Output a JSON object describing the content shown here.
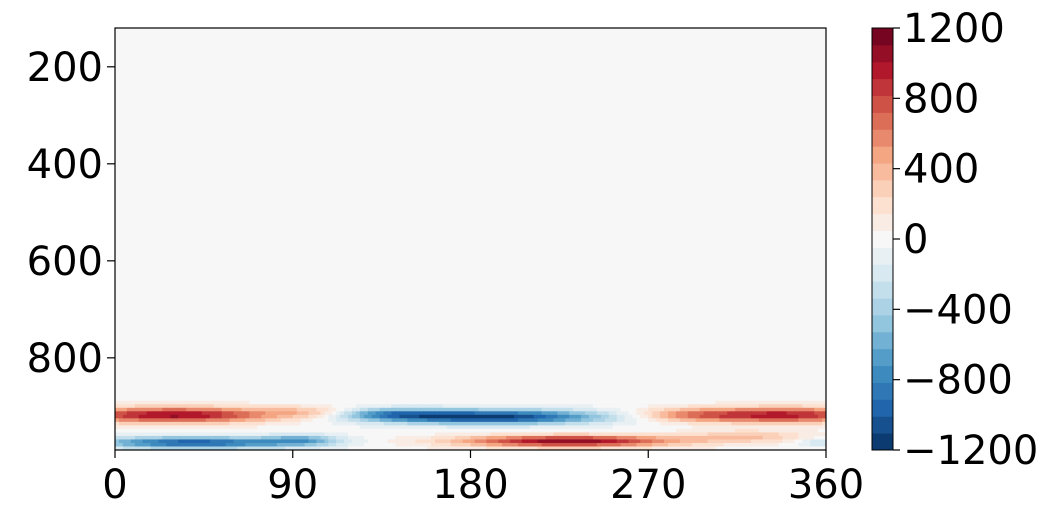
{
  "chart_data": {
    "type": "heatmap",
    "title": "",
    "xlabel": "",
    "ylabel": "",
    "xlim": [
      0,
      360
    ],
    "ylim": [
      990,
      120
    ],
    "y_inverted": true,
    "x_ticks": [
      0,
      90,
      180,
      270,
      360
    ],
    "x_tick_labels": [
      "0",
      "90",
      "180",
      "270",
      "360"
    ],
    "y_ticks": [
      200,
      400,
      600,
      800
    ],
    "y_tick_labels": [
      "200",
      "400",
      "600",
      "800"
    ],
    "colorbar": {
      "colormap": "RdBu_r",
      "range": [
        -1200,
        1200
      ],
      "ticks": [
        1200,
        800,
        400,
        0,
        -400,
        -800,
        -1200
      ],
      "tick_labels": [
        "1200",
        "800",
        "400",
        "0",
        "−400",
        "−800",
        "−1200"
      ],
      "levels": 25
    },
    "background_value": 0,
    "features": [
      {
        "x_center": 30,
        "y_center": 918,
        "x_width": 55,
        "y_width": 16,
        "value": 1050
      },
      {
        "x_center": 340,
        "y_center": 918,
        "x_width": 45,
        "y_width": 16,
        "value": 950
      },
      {
        "x_center": 290,
        "y_center": 918,
        "x_width": 30,
        "y_width": 14,
        "value": 450
      },
      {
        "x_center": 100,
        "y_center": 912,
        "x_width": 20,
        "y_width": 12,
        "value": 300
      },
      {
        "x_center": 190,
        "y_center": 922,
        "x_width": 60,
        "y_width": 15,
        "value": -1150
      },
      {
        "x_center": 140,
        "y_center": 915,
        "x_width": 30,
        "y_width": 12,
        "value": -500
      },
      {
        "x_center": 40,
        "y_center": 975,
        "x_width": 50,
        "y_width": 12,
        "value": -1000
      },
      {
        "x_center": 95,
        "y_center": 970,
        "x_width": 20,
        "y_width": 12,
        "value": -500
      },
      {
        "x_center": 230,
        "y_center": 972,
        "x_width": 55,
        "y_width": 12,
        "value": 1100
      },
      {
        "x_center": 320,
        "y_center": 962,
        "x_width": 30,
        "y_width": 12,
        "value": 350
      },
      {
        "x_center": 355,
        "y_center": 975,
        "x_width": 10,
        "y_width": 8,
        "value": -250
      },
      {
        "x_center": 180,
        "y_center": 420,
        "x_width": 110,
        "y_width": 140,
        "value": 25
      },
      {
        "x_center": 180,
        "y_center": 160,
        "x_width": 130,
        "y_width": 50,
        "value": 20
      },
      {
        "x_center": 70,
        "y_center": 650,
        "x_width": 50,
        "y_width": 60,
        "value": 20
      },
      {
        "x_center": 300,
        "y_center": 630,
        "x_width": 60,
        "y_width": 70,
        "value": 20
      },
      {
        "x_center": 330,
        "y_center": 250,
        "x_width": 40,
        "y_width": 40,
        "value": 20
      },
      {
        "x_center": 20,
        "y_center": 230,
        "x_width": 25,
        "y_width": 60,
        "value": 15
      }
    ]
  }
}
